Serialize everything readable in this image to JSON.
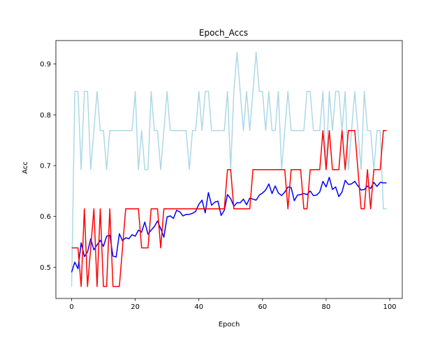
{
  "chart_data": {
    "type": "line",
    "title": "Epoch_Accs",
    "xlabel": "Epoch",
    "ylabel": "Acc",
    "xlim": [
      -4.95,
      103.95
    ],
    "ylim": [
      0.4385,
      0.9462
    ],
    "xticks": [
      0,
      20,
      40,
      60,
      80,
      100
    ],
    "yticks": [
      0.5,
      0.6,
      0.7,
      0.8,
      0.9
    ],
    "ytick_labels": [
      "0.5",
      "0.6",
      "0.7",
      "0.8",
      "0.9"
    ],
    "grid": false,
    "legend": "none",
    "x": [
      0,
      1,
      2,
      3,
      4,
      5,
      6,
      7,
      8,
      9,
      10,
      11,
      12,
      13,
      14,
      15,
      16,
      17,
      18,
      19,
      20,
      21,
      22,
      23,
      24,
      25,
      26,
      27,
      28,
      29,
      30,
      31,
      32,
      33,
      34,
      35,
      36,
      37,
      38,
      39,
      40,
      41,
      42,
      43,
      44,
      45,
      46,
      47,
      48,
      49,
      50,
      51,
      52,
      53,
      54,
      55,
      56,
      57,
      58,
      59,
      60,
      61,
      62,
      63,
      64,
      65,
      66,
      67,
      68,
      69,
      70,
      71,
      72,
      73,
      74,
      75,
      76,
      77,
      78,
      79,
      80,
      81,
      82,
      83,
      84,
      85,
      86,
      87,
      88,
      89,
      90,
      91,
      92,
      93,
      94,
      95,
      96,
      97,
      98,
      99
    ],
    "series": [
      {
        "color": "#add8e6",
        "values": [
          0.462,
          0.846,
          0.846,
          0.692,
          0.846,
          0.846,
          0.692,
          0.769,
          0.846,
          0.769,
          0.769,
          0.692,
          0.769,
          0.769,
          0.769,
          0.769,
          0.769,
          0.769,
          0.769,
          0.769,
          0.846,
          0.692,
          0.769,
          0.692,
          0.692,
          0.846,
          0.769,
          0.769,
          0.692,
          0.769,
          0.846,
          0.769,
          0.769,
          0.769,
          0.769,
          0.769,
          0.769,
          0.692,
          0.769,
          0.769,
          0.846,
          0.769,
          0.846,
          0.846,
          0.769,
          0.769,
          0.769,
          0.769,
          0.769,
          0.846,
          0.692,
          0.846,
          0.923,
          0.846,
          0.769,
          0.846,
          0.769,
          0.846,
          0.923,
          0.846,
          0.846,
          0.769,
          0.846,
          0.769,
          0.769,
          0.846,
          0.692,
          0.769,
          0.846,
          0.769,
          0.769,
          0.769,
          0.769,
          0.769,
          0.846,
          0.846,
          0.769,
          0.769,
          0.769,
          0.846,
          0.692,
          0.846,
          0.769,
          0.846,
          0.846,
          0.769,
          0.846,
          0.692,
          0.769,
          0.846,
          0.769,
          0.692,
          0.846,
          0.769,
          0.769,
          0.692,
          0.769,
          0.769,
          0.615,
          0.615
        ]
      },
      {
        "color": "#0000ff",
        "values": [
          0.49,
          0.51,
          0.497,
          0.548,
          0.521,
          0.53,
          0.556,
          0.534,
          0.544,
          0.553,
          0.541,
          0.561,
          0.563,
          0.522,
          0.52,
          0.566,
          0.552,
          0.558,
          0.556,
          0.564,
          0.561,
          0.573,
          0.569,
          0.589,
          0.565,
          0.573,
          0.58,
          0.591,
          0.576,
          0.559,
          0.599,
          0.601,
          0.596,
          0.612,
          0.609,
          0.601,
          0.604,
          0.604,
          0.606,
          0.61,
          0.624,
          0.632,
          0.607,
          0.647,
          0.622,
          0.628,
          0.63,
          0.602,
          0.612,
          0.643,
          0.635,
          0.62,
          0.627,
          0.627,
          0.634,
          0.623,
          0.636,
          0.634,
          0.632,
          0.642,
          0.646,
          0.652,
          0.664,
          0.645,
          0.66,
          0.646,
          0.641,
          0.648,
          0.658,
          0.657,
          0.631,
          0.642,
          0.643,
          0.645,
          0.643,
          0.65,
          0.641,
          0.642,
          0.648,
          0.669,
          0.658,
          0.677,
          0.653,
          0.658,
          0.639,
          0.648,
          0.671,
          0.663,
          0.664,
          0.669,
          0.66,
          0.652,
          0.653,
          0.66,
          0.655,
          0.667,
          0.659,
          0.667,
          0.666,
          0.666
        ]
      },
      {
        "color": "#ff0000",
        "values": [
          0.538,
          0.538,
          0.538,
          0.462,
          0.615,
          0.462,
          0.538,
          0.615,
          0.462,
          0.615,
          0.462,
          0.462,
          0.615,
          0.462,
          0.462,
          0.462,
          0.538,
          0.615,
          0.615,
          0.615,
          0.615,
          0.615,
          0.538,
          0.538,
          0.538,
          0.615,
          0.615,
          0.615,
          0.538,
          0.615,
          0.615,
          0.615,
          0.615,
          0.615,
          0.615,
          0.615,
          0.615,
          0.615,
          0.615,
          0.615,
          0.615,
          0.615,
          0.615,
          0.615,
          0.615,
          0.615,
          0.615,
          0.615,
          0.615,
          0.692,
          0.692,
          0.615,
          0.615,
          0.615,
          0.615,
          0.615,
          0.615,
          0.692,
          0.692,
          0.692,
          0.692,
          0.692,
          0.692,
          0.692,
          0.692,
          0.692,
          0.692,
          0.692,
          0.615,
          0.692,
          0.692,
          0.692,
          0.692,
          0.615,
          0.615,
          0.692,
          0.692,
          0.692,
          0.692,
          0.769,
          0.692,
          0.769,
          0.692,
          0.692,
          0.692,
          0.769,
          0.692,
          0.769,
          0.769,
          0.769,
          0.692,
          0.615,
          0.615,
          0.692,
          0.615,
          0.692,
          0.692,
          0.692,
          0.769,
          0.769
        ]
      }
    ]
  }
}
